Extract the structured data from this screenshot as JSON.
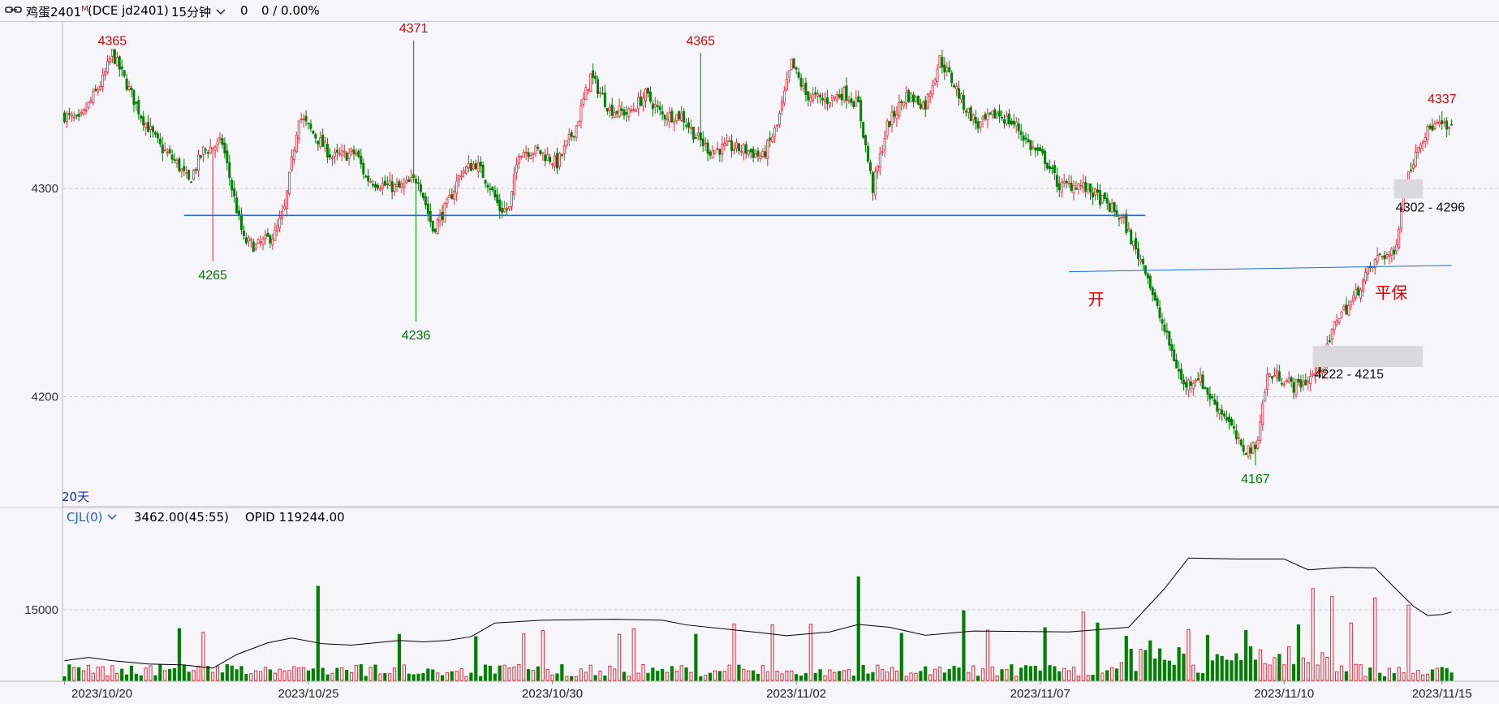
{
  "header": {
    "title": "鸡蛋2401",
    "title_sup": "M",
    "code": "(DCE jd2401)",
    "period": "15分钟",
    "price": "0",
    "change": "0 / 0.00%"
  },
  "main_axis": {
    "label_20d": "20天"
  },
  "indicator": {
    "name": "CJL(0)",
    "value": "3462.00(45:55)",
    "opid": "OPID 119244.00"
  },
  "annotations": {
    "open_label": "开",
    "close_label": "平保",
    "zone_upper": "4302 - 4296",
    "zone_lower": "4222 - 4215"
  },
  "colors": {
    "up": "#e8293a",
    "down": "#008000",
    "peak_label": "#e00000",
    "trough_label": "#007a00",
    "support_line": "#1a6fd0",
    "avg_line": "#000000"
  },
  "chart_data": [
    {
      "type": "candlestick",
      "title": "",
      "ylim": [
        4150,
        4380
      ],
      "yticks": [
        4200,
        4300
      ],
      "grid": true,
      "x_labels": [
        "2023/10/20",
        "2023/10/25",
        "2023/10/30",
        "2023/11/02",
        "2023/11/07",
        "2023/11/10",
        "2023/11/15"
      ],
      "close_path": [
        [
          0,
          4335
        ],
        [
          6,
          4332
        ],
        [
          10,
          4340
        ],
        [
          16,
          4352
        ],
        [
          20,
          4365
        ],
        [
          26,
          4350
        ],
        [
          32,
          4335
        ],
        [
          40,
          4320
        ],
        [
          47,
          4312
        ],
        [
          52,
          4303
        ],
        [
          58,
          4318
        ],
        [
          66,
          4322
        ],
        [
          70,
          4300
        ],
        [
          75,
          4275
        ],
        [
          80,
          4272
        ],
        [
          88,
          4278
        ],
        [
          92,
          4290
        ],
        [
          98,
          4335
        ],
        [
          105,
          4325
        ],
        [
          112,
          4315
        ],
        [
          122,
          4317
        ],
        [
          126,
          4305
        ],
        [
          132,
          4302
        ],
        [
          140,
          4300
        ],
        [
          148,
          4305
        ],
        [
          154,
          4280
        ],
        [
          160,
          4292
        ],
        [
          166,
          4308
        ],
        [
          172,
          4312
        ],
        [
          178,
          4301
        ],
        [
          182,
          4290
        ],
        [
          186,
          4290
        ],
        [
          190,
          4318
        ],
        [
          198,
          4318
        ],
        [
          206,
          4312
        ],
        [
          214,
          4330
        ],
        [
          220,
          4354
        ],
        [
          228,
          4338
        ],
        [
          236,
          4336
        ],
        [
          243,
          4345
        ],
        [
          250,
          4335
        ],
        [
          258,
          4335
        ],
        [
          264,
          4325
        ],
        [
          270,
          4318
        ],
        [
          278,
          4320
        ],
        [
          286,
          4318
        ],
        [
          292,
          4315
        ],
        [
          298,
          4330
        ],
        [
          304,
          4360
        ],
        [
          310,
          4345
        ],
        [
          318,
          4342
        ],
        [
          326,
          4346
        ],
        [
          332,
          4340
        ],
        [
          338,
          4300
        ],
        [
          344,
          4330
        ],
        [
          352,
          4345
        ],
        [
          360,
          4340
        ],
        [
          366,
          4362
        ],
        [
          372,
          4350
        ],
        [
          376,
          4340
        ],
        [
          382,
          4330
        ],
        [
          390,
          4336
        ],
        [
          398,
          4330
        ],
        [
          404,
          4320
        ],
        [
          410,
          4314
        ],
        [
          416,
          4301
        ],
        [
          424,
          4302
        ],
        [
          430,
          4298
        ],
        [
          438,
          4290
        ],
        [
          443,
          4284
        ],
        [
          448,
          4270
        ],
        [
          452,
          4262
        ],
        [
          456,
          4245
        ],
        [
          462,
          4225
        ],
        [
          468,
          4205
        ],
        [
          474,
          4210
        ],
        [
          480,
          4198
        ],
        [
          486,
          4190
        ],
        [
          492,
          4175
        ],
        [
          498,
          4175
        ],
        [
          503,
          4210
        ],
        [
          508,
          4210
        ],
        [
          514,
          4205
        ],
        [
          520,
          4208
        ],
        [
          526,
          4215
        ],
        [
          532,
          4238
        ],
        [
          538,
          4245
        ],
        [
          544,
          4258
        ],
        [
          550,
          4268
        ],
        [
          556,
          4268
        ],
        [
          560,
          4298
        ],
        [
          566,
          4322
        ],
        [
          572,
          4330
        ],
        [
          576,
          4330
        ],
        [
          579,
          4328
        ]
      ],
      "peaks": [
        {
          "i": 20,
          "value": 4365
        },
        {
          "i": 146,
          "value": 4371
        },
        {
          "i": 266,
          "value": 4365
        },
        {
          "i": 576,
          "value": 4337
        }
      ],
      "troughs": [
        {
          "i": 62,
          "value": 4265
        },
        {
          "i": 147,
          "value": 4236
        },
        {
          "i": 498,
          "value": 4167
        }
      ],
      "long_wicks": [
        {
          "i": 147,
          "low": 4236,
          "high": 4290
        },
        {
          "i": 146,
          "low": 4330,
          "high": 4371
        }
      ],
      "support_level": 4287,
      "support_range_i": [
        50,
        452
      ],
      "cost_line": {
        "i0": 420,
        "v0": 4260,
        "i1": 580,
        "v1": 4263
      },
      "zones": [
        {
          "i0": 556,
          "i1": 568,
          "top": 4302,
          "bottom": 4296
        },
        {
          "i0": 522,
          "i1": 568,
          "top": 4222,
          "bottom": 4215
        }
      ]
    },
    {
      "type": "bar",
      "title": "",
      "yticks": [
        15000
      ],
      "ylim": [
        0,
        30000
      ],
      "grid": true,
      "series": [
        {
          "name": "CJL(0)",
          "values": []
        }
      ],
      "avg_path": [
        [
          0,
          4200
        ],
        [
          10,
          4900
        ],
        [
          20,
          4200
        ],
        [
          35,
          3500
        ],
        [
          50,
          3300
        ],
        [
          62,
          2600
        ],
        [
          72,
          5500
        ],
        [
          85,
          8000
        ],
        [
          95,
          9000
        ],
        [
          108,
          7800
        ],
        [
          120,
          7500
        ],
        [
          140,
          8500
        ],
        [
          150,
          8200
        ],
        [
          160,
          8500
        ],
        [
          170,
          9300
        ],
        [
          180,
          12200
        ],
        [
          200,
          12800
        ],
        [
          230,
          13000
        ],
        [
          250,
          12800
        ],
        [
          260,
          11800
        ],
        [
          290,
          10200
        ],
        [
          302,
          9500
        ],
        [
          320,
          10300
        ],
        [
          332,
          11900
        ],
        [
          345,
          11300
        ],
        [
          360,
          9600
        ],
        [
          380,
          10500
        ],
        [
          420,
          10300
        ],
        [
          445,
          11300
        ],
        [
          460,
          19500
        ],
        [
          470,
          26000
        ],
        [
          490,
          25800
        ],
        [
          510,
          25800
        ],
        [
          520,
          23500
        ],
        [
          535,
          24000
        ],
        [
          548,
          23900
        ],
        [
          556,
          19800
        ],
        [
          564,
          15800
        ],
        [
          570,
          13800
        ],
        [
          576,
          14000
        ],
        [
          580,
          14500
        ]
      ]
    }
  ]
}
